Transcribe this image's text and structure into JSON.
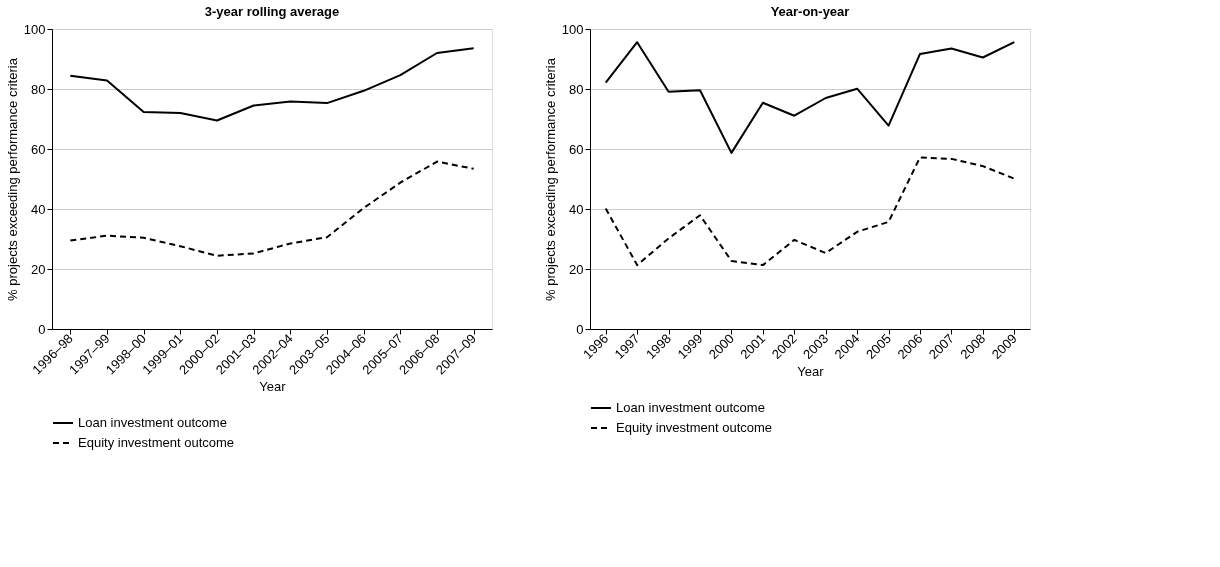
{
  "chart_data": [
    {
      "type": "line",
      "title": "3-year rolling average",
      "xlabel": "Year",
      "ylabel": "% projects exceeding performance criteria",
      "categories": [
        "1996–98",
        "1997–99",
        "1998–00",
        "1999–01",
        "2000–02",
        "2001–03",
        "2002–04",
        "2003–05",
        "2004–06",
        "2005–07",
        "2006–08",
        "2007–09"
      ],
      "ylim": [
        0,
        100
      ],
      "yticks": [
        0,
        20,
        40,
        60,
        80,
        100
      ],
      "grid": "y",
      "legend": "bottom",
      "marker": "none",
      "series": [
        {
          "name": "Loan investment outcome",
          "color": "#000000",
          "line_style": "solid",
          "values": [
            84.4,
            82.8,
            72.3,
            72.0,
            69.5,
            74.5,
            75.8,
            75.3,
            79.4,
            84.6,
            92.0,
            93.6
          ]
        },
        {
          "name": "Equity investment outcome",
          "color": "#000000",
          "line_style": "dashed",
          "values": [
            29.5,
            31.1,
            30.4,
            27.6,
            24.4,
            25.2,
            28.5,
            30.6,
            40.3,
            48.8,
            55.8,
            53.4
          ]
        }
      ]
    },
    {
      "type": "line",
      "title": "Year-on-year",
      "xlabel": "Year",
      "ylabel": "% projects exceeding performance criteria",
      "categories": [
        "1996",
        "1997",
        "1998",
        "1999",
        "2000",
        "2001",
        "2002",
        "2003",
        "2004",
        "2005",
        "2006",
        "2007",
        "2008",
        "2009"
      ],
      "ylim": [
        0,
        100
      ],
      "yticks": [
        0,
        20,
        40,
        60,
        80,
        100
      ],
      "grid": "y",
      "legend": "bottom",
      "marker": "none",
      "series": [
        {
          "name": "Loan investment outcome",
          "color": "#000000",
          "line_style": "solid",
          "values": [
            82.1,
            95.6,
            79.1,
            79.6,
            58.7,
            75.4,
            71.1,
            77.0,
            80.1,
            67.8,
            91.7,
            93.5,
            90.5,
            95.6
          ]
        },
        {
          "name": "Equity investment outcome",
          "color": "#000000",
          "line_style": "dashed",
          "values": [
            40.2,
            21.3,
            30.2,
            37.9,
            22.7,
            21.3,
            29.7,
            25.3,
            32.4,
            35.7,
            57.2,
            56.7,
            54.3,
            50.1
          ]
        }
      ]
    }
  ]
}
